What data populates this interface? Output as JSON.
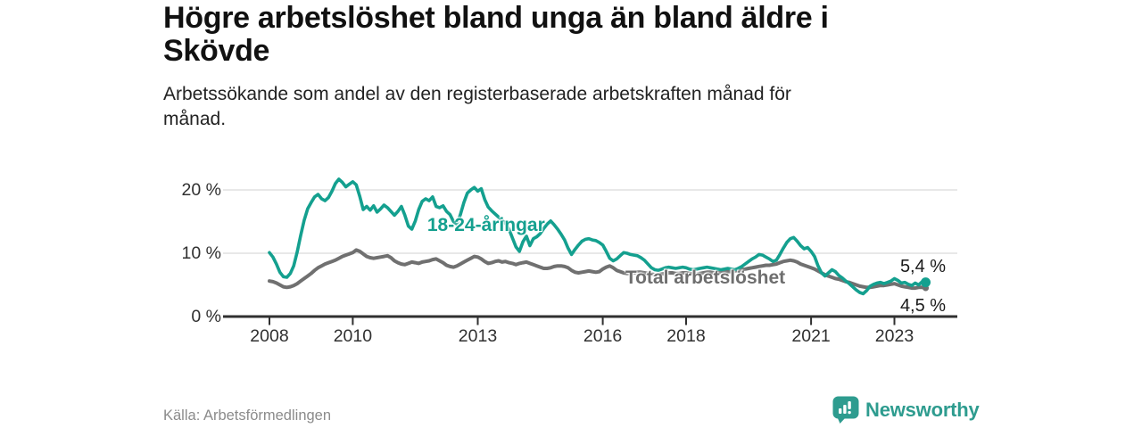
{
  "page": {
    "title": "Högre arbetslöshet bland unga än bland äldre i Skövde",
    "subtitle": "Arbetssökande som andel av den registerbaserade arbetskraften månad för månad.",
    "source": "Källa: Arbetsförmedlingen",
    "brand": "Newsworthy"
  },
  "colors": {
    "young_line": "#14a08f",
    "total_line": "#707070",
    "grid": "#dadada",
    "axis": "#303030",
    "brand_teal": "#2e9c8f",
    "text_dark": "#111111",
    "muted_text": "#8b8b8b"
  },
  "chart_data": {
    "type": "line",
    "title": "Högre arbetslöshet bland unga än bland äldre i Skövde",
    "subtitle": "Arbetssökande som andel av den registerbaserade arbetskraften månad för månad.",
    "unit": "%",
    "x_start": 2008.0,
    "x_step": 0.08333,
    "x_end": 2023.75,
    "x_ticks": [
      2008,
      2010,
      2013,
      2016,
      2018,
      2021,
      2023
    ],
    "y_ticks": [
      {
        "value": 0,
        "label": "0 %"
      },
      {
        "value": 10,
        "label": "10 %"
      },
      {
        "value": 20,
        "label": "20 %"
      }
    ],
    "ylim": [
      0,
      23
    ],
    "grid": "horizontal",
    "legend": "inline-labels",
    "series": [
      {
        "name": "18-24-åringar",
        "color": "#14a08f",
        "end_label": "5,4 %",
        "end_value": 5.4,
        "label_pos": [
          2013.2,
          14.35
        ],
        "values": [
          10.1,
          9.4,
          8.3,
          7.0,
          6.3,
          6.2,
          6.8,
          8.0,
          10.2,
          12.8,
          15.2,
          17.0,
          18.0,
          18.9,
          19.3,
          18.6,
          18.3,
          18.8,
          19.8,
          21.0,
          21.7,
          21.2,
          20.5,
          20.9,
          21.3,
          20.8,
          19.0,
          16.9,
          17.4,
          16.8,
          17.5,
          16.5,
          17.0,
          17.6,
          17.2,
          16.6,
          16.0,
          16.6,
          17.4,
          16.0,
          14.3,
          13.8,
          15.1,
          16.9,
          18.2,
          18.6,
          18.3,
          18.9,
          17.4,
          17.2,
          17.5,
          16.6,
          16.1,
          15.0,
          14.6,
          16.1,
          18.0,
          19.5,
          20.0,
          20.4,
          19.8,
          20.2,
          18.5,
          17.3,
          16.7,
          16.2,
          15.7,
          15.2,
          14.7,
          13.8,
          12.4,
          11.0,
          10.3,
          11.8,
          12.7,
          11.2,
          12.3,
          12.6,
          13.1,
          13.9,
          14.6,
          15.1,
          14.5,
          13.8,
          13.0,
          12.1,
          10.8,
          9.8,
          10.6,
          11.3,
          11.9,
          12.2,
          12.3,
          12.1,
          12.0,
          11.7,
          11.3,
          10.3,
          9.2,
          8.8,
          9.1,
          9.6,
          10.1,
          10.0,
          9.8,
          9.7,
          9.6,
          9.3,
          8.9,
          8.3,
          7.7,
          7.4,
          7.3,
          7.5,
          7.7,
          7.8,
          7.7,
          7.6,
          7.7,
          7.8,
          7.7,
          7.5,
          7.4,
          7.5,
          7.6,
          7.7,
          7.8,
          7.7,
          7.6,
          7.5,
          7.4,
          7.5,
          7.6,
          7.5,
          7.4,
          7.6,
          7.9,
          8.3,
          8.7,
          9.1,
          9.4,
          9.8,
          9.7,
          9.4,
          9.1,
          8.7,
          8.9,
          9.8,
          10.8,
          11.7,
          12.3,
          12.5,
          11.9,
          11.2,
          10.7,
          10.9,
          10.3,
          9.5,
          8.0,
          6.9,
          6.4,
          6.9,
          7.4,
          7.1,
          6.5,
          6.1,
          5.6,
          5.2,
          4.7,
          4.2,
          3.8,
          3.6,
          4.1,
          4.8,
          5.1,
          5.3,
          5.4,
          5.2,
          5.4,
          5.6,
          6.0,
          5.7,
          5.3,
          5.4,
          5.1,
          4.9,
          5.3,
          5.0,
          5.5,
          5.4
        ]
      },
      {
        "name": "Total arbetslöshet",
        "color": "#707070",
        "end_label": "4,5 %",
        "end_value": 4.5,
        "label_pos": [
          2018.46,
          6.05
        ],
        "values": [
          5.6,
          5.5,
          5.3,
          5.0,
          4.7,
          4.6,
          4.7,
          4.9,
          5.2,
          5.6,
          6.0,
          6.4,
          6.8,
          7.3,
          7.7,
          8.0,
          8.3,
          8.5,
          8.7,
          8.9,
          9.2,
          9.5,
          9.7,
          9.9,
          10.1,
          10.5,
          10.3,
          9.9,
          9.5,
          9.3,
          9.2,
          9.3,
          9.4,
          9.5,
          9.6,
          9.3,
          8.8,
          8.5,
          8.3,
          8.2,
          8.4,
          8.6,
          8.5,
          8.4,
          8.6,
          8.7,
          8.8,
          9.0,
          9.1,
          8.8,
          8.5,
          8.1,
          7.9,
          7.8,
          8.0,
          8.3,
          8.6,
          8.9,
          9.2,
          9.5,
          9.4,
          9.1,
          8.7,
          8.4,
          8.5,
          8.7,
          8.8,
          8.6,
          8.7,
          8.5,
          8.4,
          8.2,
          8.4,
          8.5,
          8.6,
          8.4,
          8.2,
          8.0,
          7.8,
          7.6,
          7.6,
          7.7,
          7.9,
          8.0,
          8.0,
          7.9,
          7.7,
          7.3,
          7.0,
          6.9,
          7.0,
          7.1,
          7.2,
          7.1,
          7.0,
          7.1,
          7.5,
          7.8,
          8.0,
          7.7,
          7.3,
          7.1,
          6.9,
          6.8,
          6.8,
          6.9,
          7.0,
          7.0,
          6.9,
          6.8,
          6.7,
          6.6,
          6.6,
          6.7,
          6.8,
          6.9,
          6.9,
          6.8,
          6.8,
          6.9,
          6.9,
          6.8,
          6.7,
          6.7,
          6.8,
          6.9,
          7.0,
          7.0,
          6.9,
          6.9,
          7.0,
          7.1,
          7.1,
          7.1,
          7.2,
          7.3,
          7.4,
          7.5,
          7.6,
          7.7,
          7.8,
          7.9,
          8.0,
          8.1,
          8.1,
          8.2,
          8.3,
          8.5,
          8.7,
          8.8,
          8.9,
          8.8,
          8.6,
          8.3,
          8.1,
          7.9,
          7.7,
          7.5,
          7.2,
          6.9,
          6.6,
          6.4,
          6.2,
          6.0,
          5.9,
          5.7,
          5.5,
          5.4,
          5.2,
          5.0,
          4.8,
          4.7,
          4.6,
          4.6,
          4.7,
          4.8,
          4.9,
          4.9,
          5.0,
          5.1,
          5.2,
          5.0,
          4.8,
          4.7,
          4.6,
          4.5,
          4.5,
          4.6,
          4.6,
          4.5
        ]
      }
    ]
  }
}
